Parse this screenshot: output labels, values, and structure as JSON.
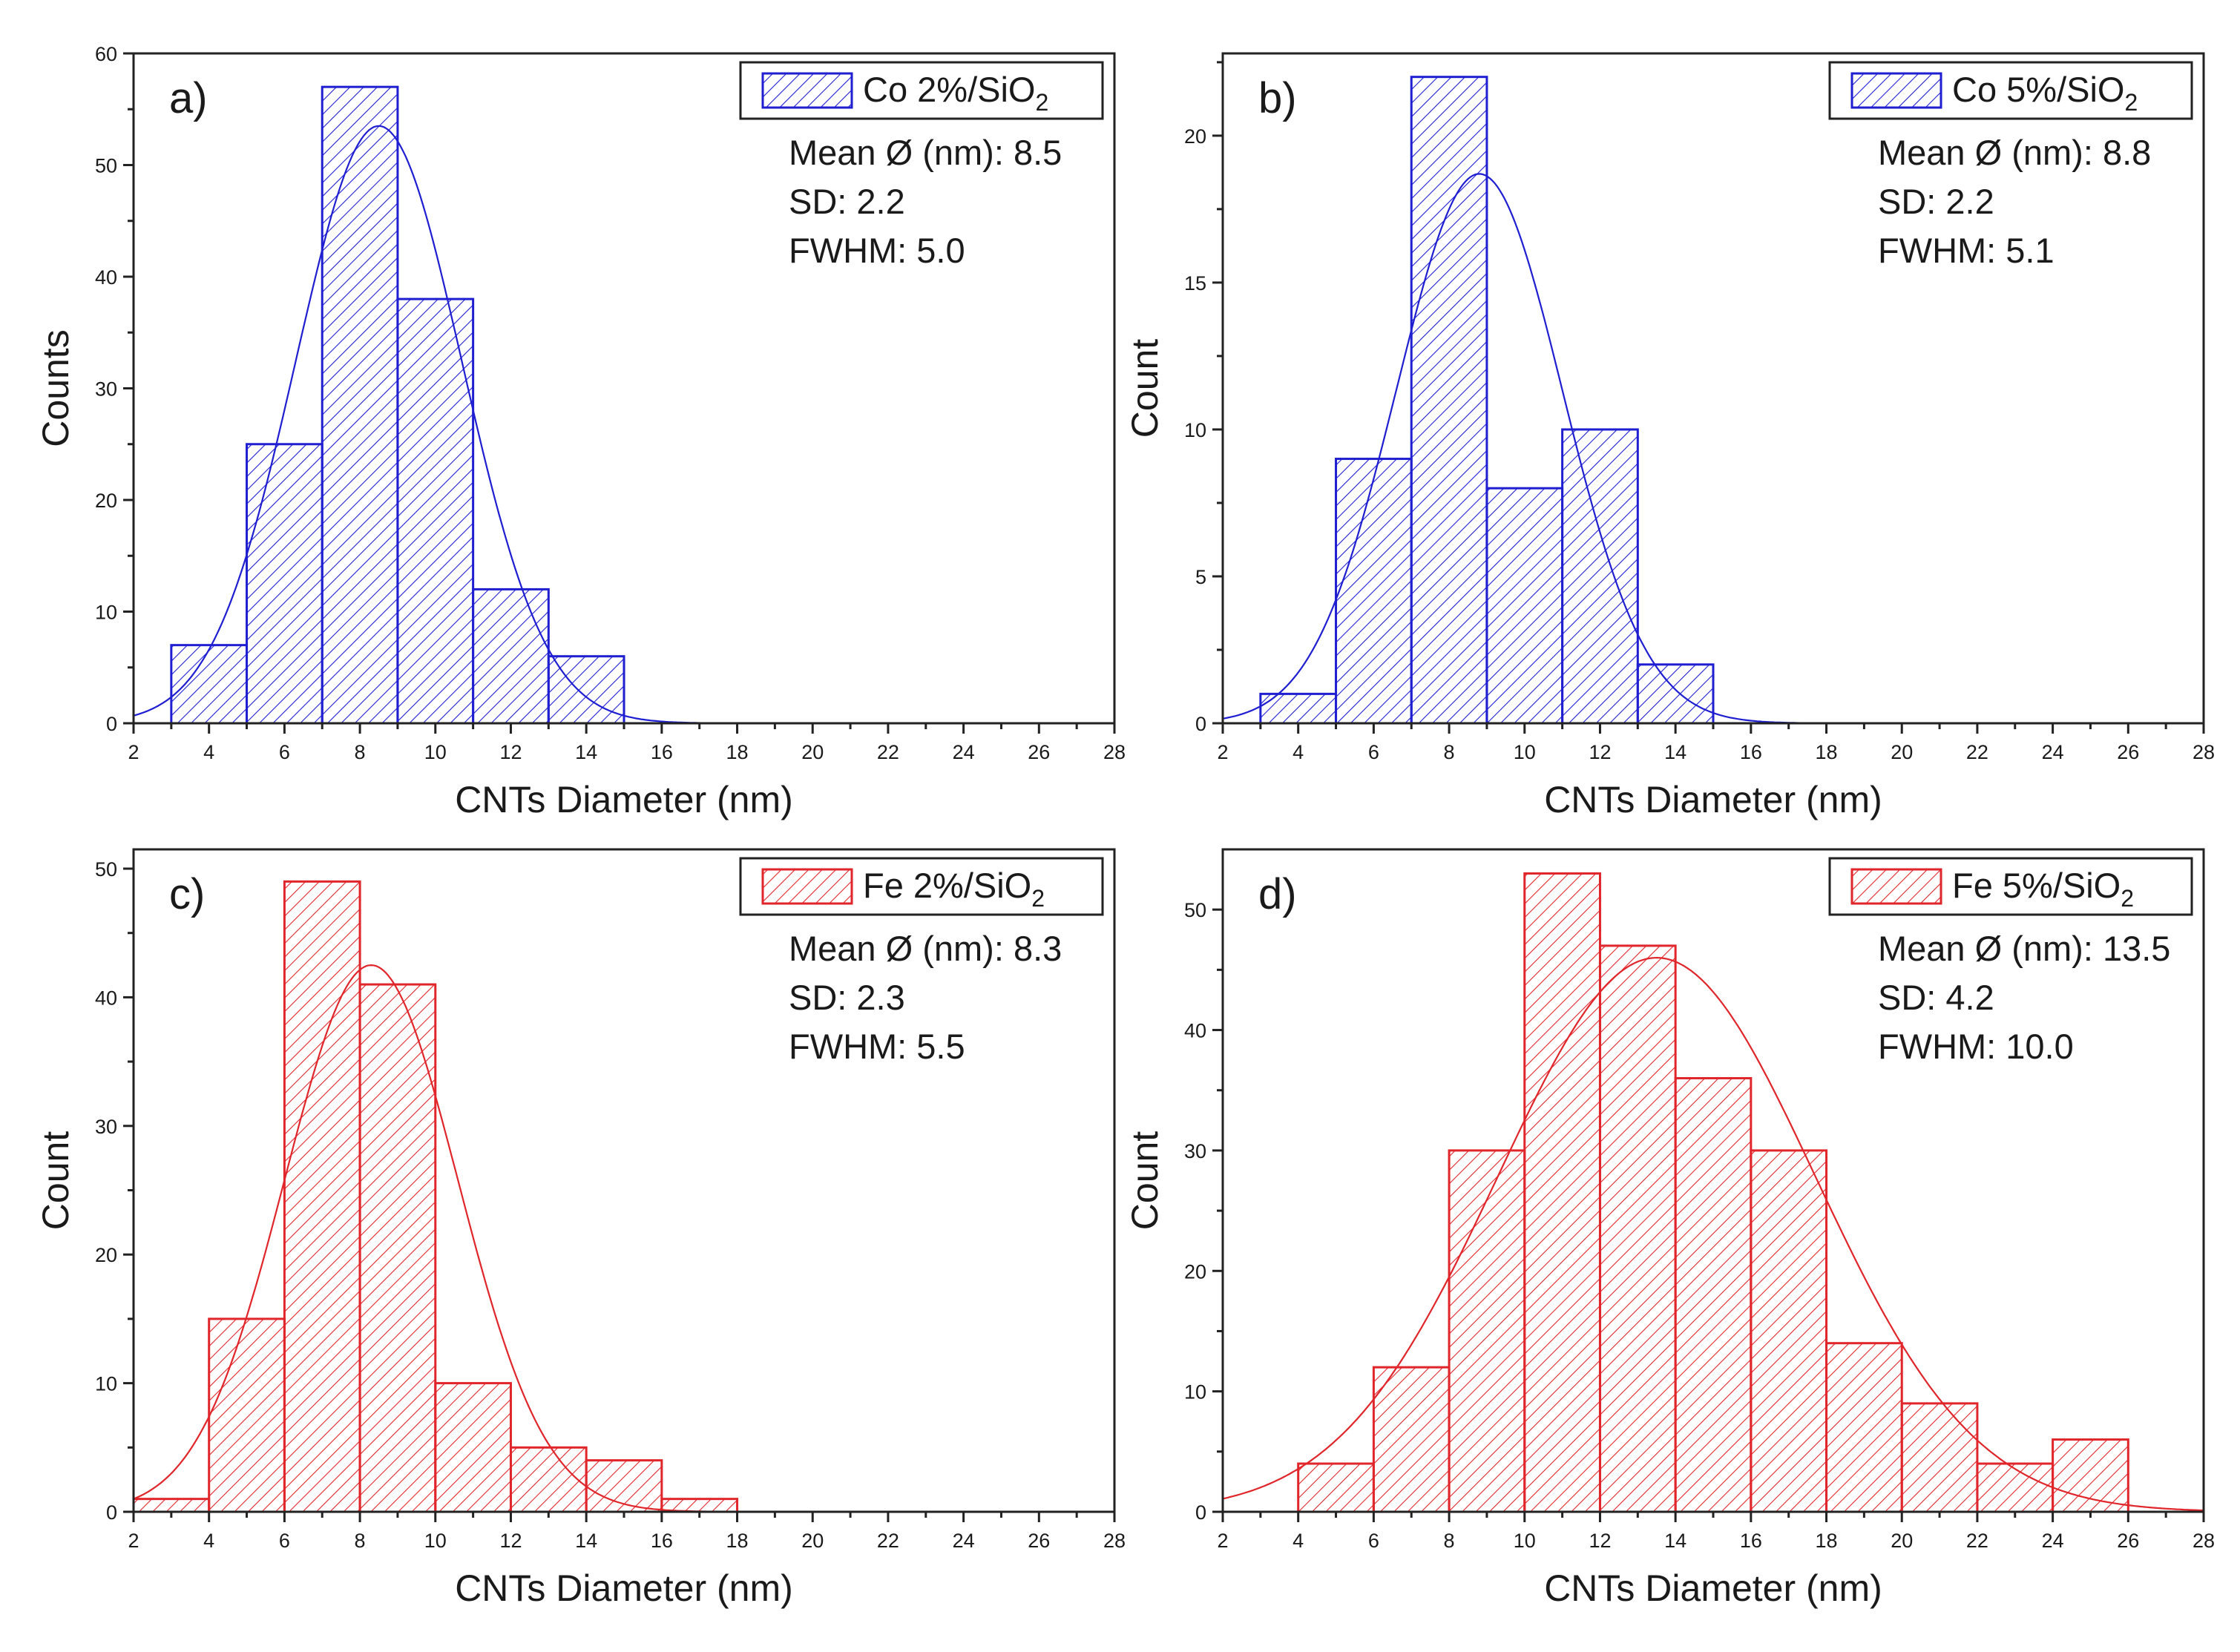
{
  "chart_data": [
    {
      "type": "bar",
      "panel_label": "a)",
      "legend": {
        "name": "Co 2%/SiO",
        "subscript": "2"
      },
      "stats": [
        "Mean Ø (nm): 8.5",
        "SD: 2.2",
        "FWHM: 5.0"
      ],
      "xlabel": "CNTs Diameter (nm)",
      "ylabel": "Counts",
      "xlim": [
        2,
        28
      ],
      "ylim": [
        0,
        60
      ],
      "xticks": [
        "2",
        "4",
        "6",
        "8",
        "10",
        "12",
        "14",
        "16",
        "18",
        "20",
        "22",
        "24",
        "26",
        "28"
      ],
      "yticks": [
        "0",
        "10",
        "20",
        "30",
        "40",
        "50",
        "60"
      ],
      "bins": [
        [
          3,
          5
        ],
        [
          5,
          7
        ],
        [
          7,
          9
        ],
        [
          9,
          11
        ],
        [
          11,
          13
        ],
        [
          13,
          15
        ]
      ],
      "values": [
        7,
        25,
        57,
        38,
        12,
        6
      ],
      "fit": {
        "type": "gaussian",
        "mean": 8.5,
        "sd": 2.2,
        "peak": 53.5
      },
      "color": "#1f1fd1"
    },
    {
      "type": "bar",
      "panel_label": "b)",
      "legend": {
        "name": "Co 5%/SiO",
        "subscript": "2"
      },
      "stats": [
        "Mean Ø (nm): 8.8",
        "SD: 2.2",
        "FWHM: 5.1"
      ],
      "xlabel": "CNTs Diameter (nm)",
      "ylabel": "Count",
      "xlim": [
        2,
        28
      ],
      "ylim": [
        0,
        22.8
      ],
      "xticks": [
        "2",
        "4",
        "6",
        "8",
        "10",
        "12",
        "14",
        "16",
        "18",
        "20",
        "22",
        "24",
        "26",
        "28"
      ],
      "yticks": [
        "0",
        "5",
        "10",
        "15",
        "20"
      ],
      "bins": [
        [
          3,
          5
        ],
        [
          5,
          7
        ],
        [
          7,
          9
        ],
        [
          9,
          11
        ],
        [
          11,
          13
        ],
        [
          13,
          15
        ]
      ],
      "values": [
        1,
        9,
        22,
        8,
        10,
        2
      ],
      "fit": {
        "type": "gaussian",
        "mean": 8.8,
        "sd": 2.2,
        "peak": 18.7
      },
      "color": "#1f1fd1"
    },
    {
      "type": "bar",
      "panel_label": "c)",
      "legend": {
        "name": "Fe 2%/SiO",
        "subscript": "2"
      },
      "stats": [
        "Mean Ø (nm): 8.3",
        "SD: 2.3",
        "FWHM: 5.5"
      ],
      "xlabel": "CNTs Diameter (nm)",
      "ylabel": "Count",
      "xlim": [
        2,
        28
      ],
      "ylim": [
        0,
        51.5
      ],
      "xticks": [
        "2",
        "4",
        "6",
        "8",
        "10",
        "12",
        "14",
        "16",
        "18",
        "20",
        "22",
        "24",
        "26",
        "28"
      ],
      "yticks": [
        "0",
        "10",
        "20",
        "30",
        "40",
        "50"
      ],
      "bins": [
        [
          2,
          4
        ],
        [
          4,
          6
        ],
        [
          6,
          8
        ],
        [
          8,
          10
        ],
        [
          10,
          12
        ],
        [
          12,
          14
        ],
        [
          14,
          16
        ],
        [
          16,
          18
        ]
      ],
      "values": [
        1,
        15,
        49,
        41,
        10,
        5,
        4,
        1
      ],
      "fit": {
        "type": "gaussian",
        "mean": 8.3,
        "sd": 2.3,
        "peak": 42.5
      },
      "color": "#e0262b"
    },
    {
      "type": "bar",
      "panel_label": "d)",
      "legend": {
        "name": "Fe 5%/SiO",
        "subscript": "2"
      },
      "stats": [
        "Mean Ø (nm): 13.5",
        "SD: 4.2",
        "FWHM: 10.0"
      ],
      "xlabel": "CNTs Diameter (nm)",
      "ylabel": "Count",
      "xlim": [
        2,
        28
      ],
      "ylim": [
        0,
        55
      ],
      "xticks": [
        "2",
        "4",
        "6",
        "8",
        "10",
        "12",
        "14",
        "16",
        "18",
        "20",
        "22",
        "24",
        "26",
        "28"
      ],
      "yticks": [
        "0",
        "10",
        "20",
        "30",
        "40",
        "50"
      ],
      "bins": [
        [
          4,
          6
        ],
        [
          6,
          8
        ],
        [
          8,
          10
        ],
        [
          10,
          12
        ],
        [
          12,
          14
        ],
        [
          14,
          16
        ],
        [
          16,
          18
        ],
        [
          18,
          20
        ],
        [
          20,
          22
        ],
        [
          22,
          24
        ],
        [
          24,
          26
        ]
      ],
      "values": [
        4,
        12,
        30,
        53,
        47,
        36,
        30,
        14,
        9,
        4,
        6
      ],
      "fit": {
        "type": "gaussian",
        "mean": 13.5,
        "sd": 4.2,
        "peak": 46
      },
      "color": "#e0262b"
    }
  ]
}
